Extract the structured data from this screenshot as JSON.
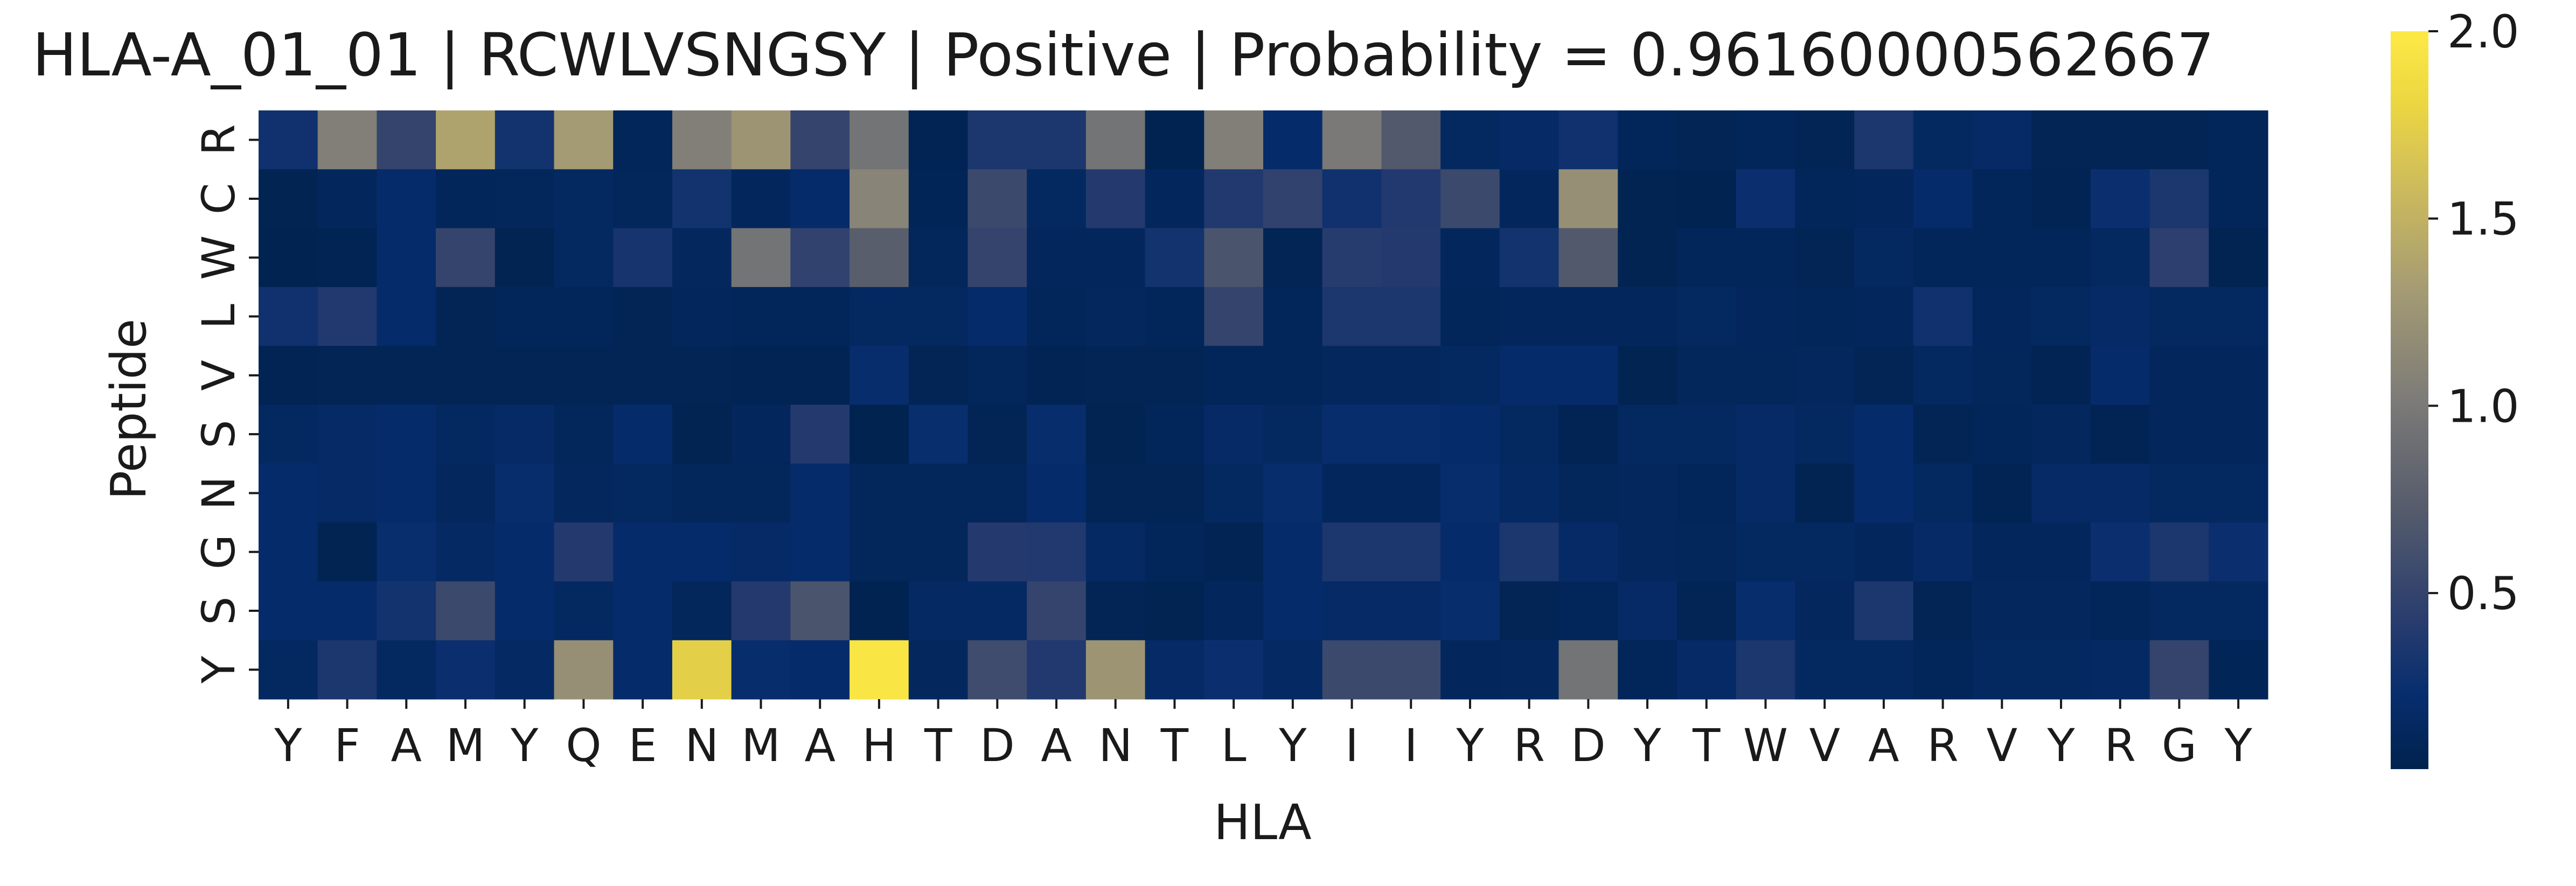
{
  "chart_data": {
    "type": "heatmap",
    "title": "HLA-A_01_01 | RCWLVSNGSY | Positive | Probability = 0.96160000562667",
    "xlabel": "HLA",
    "ylabel": "Peptide",
    "x_ticks": [
      "Y",
      "F",
      "A",
      "M",
      "Y",
      "Q",
      "E",
      "N",
      "M",
      "A",
      "H",
      "T",
      "D",
      "A",
      "N",
      "T",
      "L",
      "Y",
      "I",
      "I",
      "Y",
      "R",
      "D",
      "Y",
      "T",
      "W",
      "V",
      "A",
      "R",
      "V",
      "Y",
      "R",
      "G",
      "Y"
    ],
    "y_ticks": [
      "R",
      "C",
      "W",
      "L",
      "V",
      "S",
      "N",
      "G",
      "S",
      "Y"
    ],
    "colormap": "cividis",
    "colorbar": {
      "range": [
        0.03,
        2.0
      ],
      "ticks": [
        "0.5",
        "1.0",
        "1.5",
        "2.0"
      ]
    },
    "values": [
      [
        0.28,
        1.05,
        0.5,
        1.38,
        0.3,
        1.3,
        0.1,
        1.05,
        1.25,
        0.5,
        0.95,
        0.07,
        0.35,
        0.35,
        0.95,
        0.05,
        1.05,
        0.2,
        1.0,
        0.7,
        0.15,
        0.18,
        0.28,
        0.1,
        0.08,
        0.1,
        0.08,
        0.35,
        0.15,
        0.17,
        0.08,
        0.08,
        0.08,
        0.1
      ],
      [
        0.06,
        0.12,
        0.2,
        0.1,
        0.11,
        0.15,
        0.11,
        0.3,
        0.12,
        0.2,
        1.1,
        0.09,
        0.55,
        0.15,
        0.4,
        0.12,
        0.38,
        0.48,
        0.28,
        0.38,
        0.55,
        0.12,
        1.2,
        0.06,
        0.05,
        0.25,
        0.1,
        0.12,
        0.2,
        0.1,
        0.07,
        0.25,
        0.35,
        0.1
      ],
      [
        0.05,
        0.07,
        0.2,
        0.5,
        0.06,
        0.15,
        0.32,
        0.13,
        0.95,
        0.48,
        0.75,
        0.11,
        0.5,
        0.12,
        0.12,
        0.3,
        0.65,
        0.08,
        0.42,
        0.4,
        0.12,
        0.3,
        0.7,
        0.06,
        0.1,
        0.1,
        0.08,
        0.15,
        0.1,
        0.1,
        0.1,
        0.15,
        0.45,
        0.06
      ],
      [
        0.28,
        0.38,
        0.2,
        0.08,
        0.1,
        0.1,
        0.08,
        0.12,
        0.1,
        0.1,
        0.15,
        0.15,
        0.2,
        0.1,
        0.13,
        0.1,
        0.5,
        0.1,
        0.35,
        0.35,
        0.1,
        0.12,
        0.12,
        0.12,
        0.15,
        0.12,
        0.1,
        0.12,
        0.28,
        0.12,
        0.15,
        0.18,
        0.15,
        0.15
      ],
      [
        0.07,
        0.08,
        0.08,
        0.08,
        0.08,
        0.08,
        0.08,
        0.08,
        0.07,
        0.07,
        0.22,
        0.08,
        0.11,
        0.07,
        0.08,
        0.08,
        0.1,
        0.1,
        0.13,
        0.13,
        0.14,
        0.2,
        0.2,
        0.06,
        0.11,
        0.11,
        0.13,
        0.08,
        0.15,
        0.11,
        0.07,
        0.2,
        0.12,
        0.12
      ],
      [
        0.15,
        0.17,
        0.2,
        0.15,
        0.18,
        0.11,
        0.2,
        0.06,
        0.12,
        0.4,
        0.04,
        0.24,
        0.08,
        0.22,
        0.06,
        0.1,
        0.18,
        0.15,
        0.22,
        0.22,
        0.2,
        0.15,
        0.07,
        0.15,
        0.15,
        0.18,
        0.15,
        0.2,
        0.08,
        0.1,
        0.13,
        0.07,
        0.12,
        0.12
      ],
      [
        0.2,
        0.17,
        0.2,
        0.13,
        0.22,
        0.13,
        0.14,
        0.11,
        0.11,
        0.2,
        0.11,
        0.11,
        0.11,
        0.2,
        0.08,
        0.08,
        0.15,
        0.22,
        0.12,
        0.12,
        0.22,
        0.16,
        0.11,
        0.13,
        0.1,
        0.18,
        0.06,
        0.2,
        0.15,
        0.07,
        0.17,
        0.17,
        0.14,
        0.14
      ],
      [
        0.2,
        0.06,
        0.24,
        0.16,
        0.2,
        0.4,
        0.2,
        0.2,
        0.17,
        0.2,
        0.11,
        0.11,
        0.4,
        0.38,
        0.16,
        0.1,
        0.07,
        0.2,
        0.35,
        0.35,
        0.2,
        0.35,
        0.18,
        0.13,
        0.11,
        0.15,
        0.15,
        0.12,
        0.17,
        0.12,
        0.12,
        0.25,
        0.35,
        0.25
      ],
      [
        0.2,
        0.2,
        0.3,
        0.55,
        0.2,
        0.15,
        0.2,
        0.11,
        0.4,
        0.65,
        0.05,
        0.16,
        0.16,
        0.5,
        0.08,
        0.06,
        0.12,
        0.2,
        0.18,
        0.18,
        0.22,
        0.08,
        0.1,
        0.18,
        0.08,
        0.22,
        0.13,
        0.35,
        0.08,
        0.13,
        0.13,
        0.1,
        0.15,
        0.15
      ],
      [
        0.14,
        0.35,
        0.15,
        0.25,
        0.16,
        1.2,
        0.2,
        1.75,
        0.22,
        0.2,
        1.96,
        0.13,
        0.58,
        0.38,
        1.25,
        0.17,
        0.25,
        0.16,
        0.55,
        0.55,
        0.12,
        0.13,
        0.95,
        0.1,
        0.18,
        0.35,
        0.15,
        0.15,
        0.1,
        0.14,
        0.14,
        0.16,
        0.5,
        0.09
      ]
    ]
  }
}
